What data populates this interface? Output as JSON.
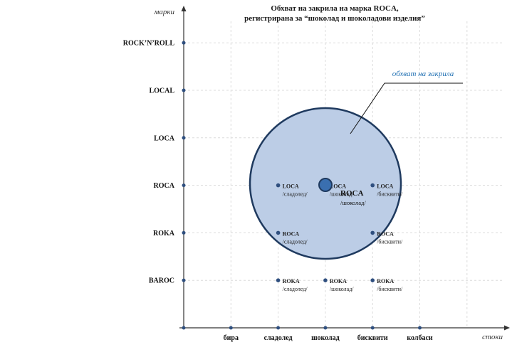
{
  "title_line1": "Обхват на закрила на марка ROCA,",
  "title_line2": "регистрирана за “шоколад и шоколадови изделия”",
  "y_axis_title": "марки",
  "x_axis_title": "стоки",
  "y_labels": [
    "BAROC",
    "ROKA",
    "ROCA",
    "LOCA",
    "LOCAL",
    "ROCK’N’ROLL"
  ],
  "x_labels": [
    "бира",
    "сладолед",
    "шоколад",
    "бисквити",
    "колбаси"
  ],
  "callout_label": "обхват на закрила",
  "center": {
    "name": "ROCA",
    "sub": "/шоколад/"
  },
  "points": [
    {
      "name": "LOCA",
      "sub": "/сладолед/",
      "col": 2,
      "row": 3
    },
    {
      "name": "LOCA",
      "sub": "/шоколад/",
      "col": 3,
      "row": 3
    },
    {
      "name": "LOCA",
      "sub": "/бисквити/",
      "col": 4,
      "row": 3
    },
    {
      "name": "ROCA",
      "sub": "/сладолед/",
      "col": 2,
      "row": 2
    },
    {
      "name": "ROCA",
      "sub": "/бисквити/",
      "col": 4,
      "row": 2
    },
    {
      "name": "ROKA",
      "sub": "/сладолед/",
      "col": 2,
      "row": 1
    },
    {
      "name": "ROKA",
      "sub": "/шоколад/",
      "col": 3,
      "row": 1
    },
    {
      "name": "ROKA",
      "sub": "/бисквити/",
      "col": 4,
      "row": 1
    }
  ],
  "colors": {
    "circle_fill": "#bccde6",
    "circle_stroke": "#1f3a5f",
    "dot": "#2f4f7f",
    "center_dot": "#3a6fb0",
    "callout": "#1f6fb2",
    "axis": "#333333"
  }
}
